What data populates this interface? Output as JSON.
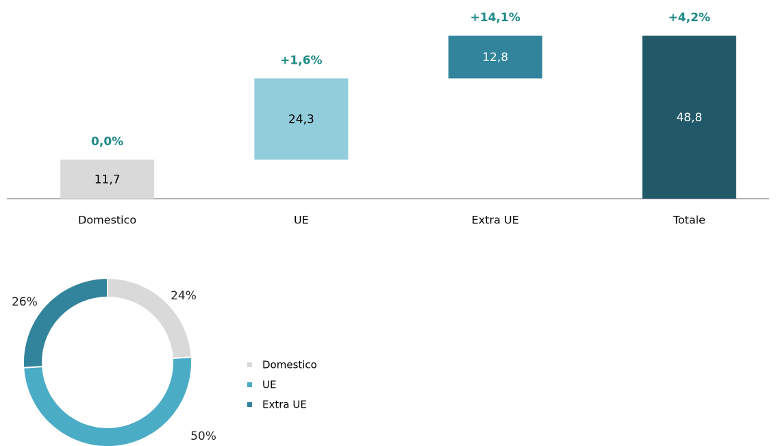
{
  "chart_data": [
    {
      "type": "waterfall",
      "categories": [
        "Domestico",
        "UE",
        "Extra UE",
        "Totale"
      ],
      "values": [
        11.7,
        24.3,
        12.8,
        48.8
      ],
      "value_labels": [
        "11,7",
        "24,3",
        "12,8",
        "48,8"
      ],
      "annotations": [
        "0,0%",
        "+1,6%",
        "+14,1%",
        "+4,2%"
      ],
      "colors": [
        "#d9d9d9",
        "#92cddc",
        "#31849b",
        "#215968"
      ],
      "totals": [
        false,
        false,
        false,
        true
      ]
    },
    {
      "type": "donut",
      "categories": [
        "Domestico",
        "UE",
        "Extra UE"
      ],
      "values": [
        24,
        50,
        26
      ],
      "value_labels": [
        "24%",
        "50%",
        "26%"
      ],
      "colors": [
        "#d9d9d9",
        "#4bacc6",
        "#31849b"
      ],
      "legend": "right"
    }
  ]
}
